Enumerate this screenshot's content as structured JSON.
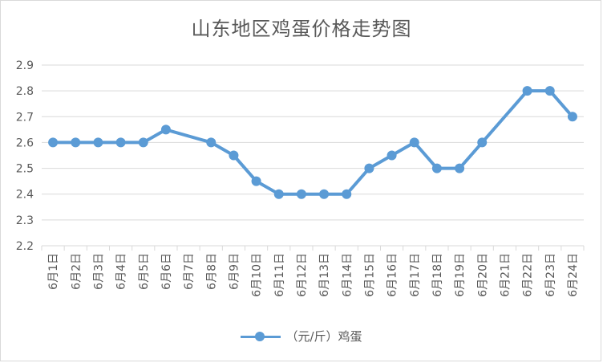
{
  "chart_data": {
    "type": "line",
    "title": "山东地区鸡蛋价格走势图",
    "xlabel": "",
    "ylabel": "",
    "ylim": [
      2.2,
      2.9
    ],
    "yticks": [
      "2.2",
      "2.3",
      "2.4",
      "2.5",
      "2.6",
      "2.7",
      "2.8",
      "2.9"
    ],
    "categories": [
      "6月1日",
      "6月2日",
      "6月3日",
      "6月4日",
      "6月5日",
      "6月6日",
      "6月7日",
      "6月8日",
      "6月9日",
      "6月10日",
      "6月11日",
      "6月12日",
      "6月13日",
      "6月14日",
      "6月15日",
      "6月16日",
      "6月17日",
      "6月18日",
      "6月19日",
      "6月20日",
      "6月21日",
      "6月22日",
      "6月23日",
      "6月24日"
    ],
    "series": [
      {
        "name": "（元/斤）鸡蛋",
        "color": "#5b9bd5",
        "values": [
          2.6,
          2.6,
          2.6,
          2.6,
          2.6,
          2.65,
          null,
          2.6,
          2.55,
          2.45,
          2.4,
          2.4,
          2.4,
          2.4,
          2.5,
          2.55,
          2.6,
          2.5,
          2.5,
          2.6,
          null,
          2.8,
          2.8,
          2.7
        ]
      }
    ],
    "grid": true,
    "legend_position": "bottom"
  }
}
